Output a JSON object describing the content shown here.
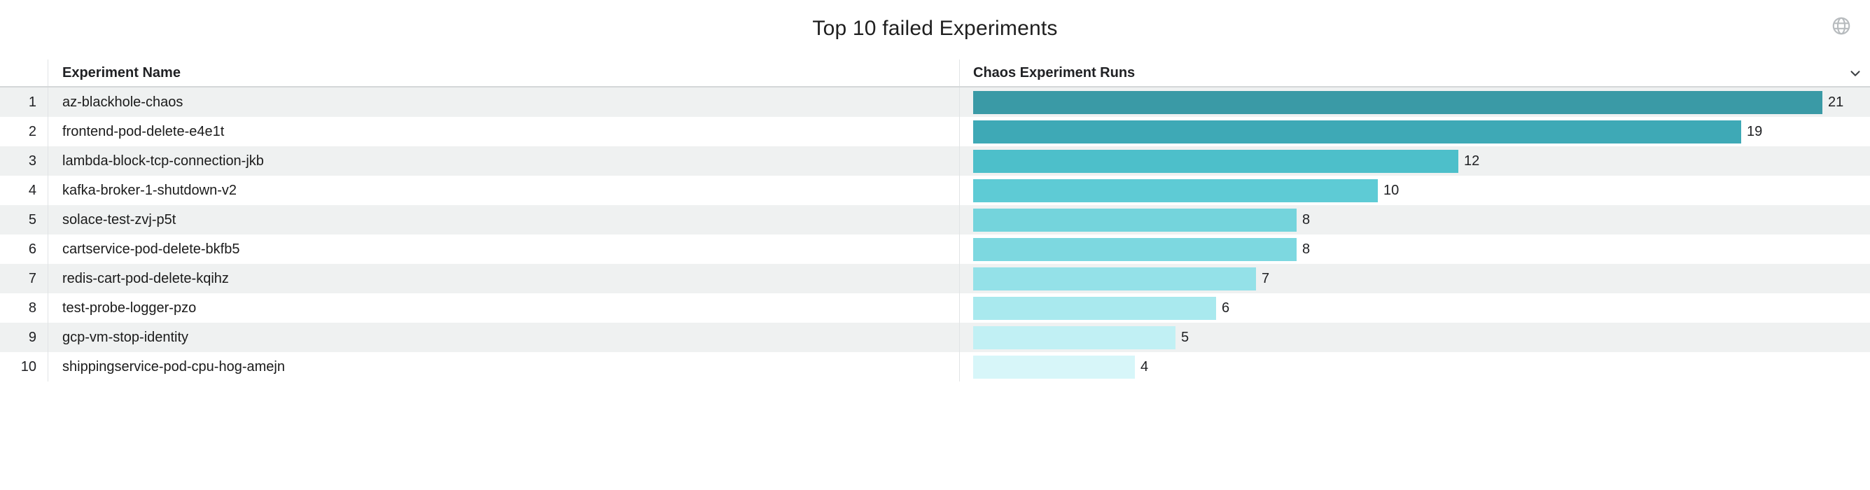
{
  "title": "Top 10 failed Experiments",
  "table": {
    "columns": [
      "Experiment Name",
      "Chaos Experiment Runs"
    ],
    "rows": [
      {
        "rank": "1",
        "name": "az-blackhole-chaos",
        "runs": "21"
      },
      {
        "rank": "2",
        "name": "frontend-pod-delete-e4e1t",
        "runs": "19"
      },
      {
        "rank": "3",
        "name": "lambda-block-tcp-connection-jkb",
        "runs": "12"
      },
      {
        "rank": "4",
        "name": "kafka-broker-1-shutdown-v2",
        "runs": "10"
      },
      {
        "rank": "5",
        "name": "solace-test-zvj-p5t",
        "runs": "8"
      },
      {
        "rank": "6",
        "name": "cartservice-pod-delete-bkfb5",
        "runs": "8"
      },
      {
        "rank": "7",
        "name": "redis-cart-pod-delete-kqihz",
        "runs": "7"
      },
      {
        "rank": "8",
        "name": "test-probe-logger-pzo",
        "runs": "6"
      },
      {
        "rank": "9",
        "name": "gcp-vm-stop-identity",
        "runs": "5"
      },
      {
        "rank": "10",
        "name": "shippingservice-pod-cpu-hog-amejn",
        "runs": "4"
      }
    ]
  },
  "chart_data": {
    "type": "bar",
    "orientation": "horizontal",
    "title": "Top 10 failed Experiments",
    "xlabel": "Chaos Experiment Runs",
    "ylabel": "Experiment Name",
    "categories": [
      "az-blackhole-chaos",
      "frontend-pod-delete-e4e1t",
      "lambda-block-tcp-connection-jkb",
      "kafka-broker-1-shutdown-v2",
      "solace-test-zvj-p5t",
      "cartservice-pod-delete-bkfb5",
      "redis-cart-pod-delete-kqihz",
      "test-probe-logger-pzo",
      "gcp-vm-stop-identity",
      "shippingservice-pod-cpu-hog-amejn"
    ],
    "values": [
      21,
      19,
      12,
      10,
      8,
      8,
      7,
      6,
      5,
      4
    ],
    "xlim": [
      0,
      21
    ],
    "value_labels_shown": true,
    "grid": false,
    "legend": "none",
    "bar_colors": [
      "#3a9aa6",
      "#3ea9b6",
      "#4dbfca",
      "#5ecbd5",
      "#74d4dc",
      "#7dd8e0",
      "#94e1e8",
      "#a9e9ee",
      "#c1f0f4",
      "#d7f6f9"
    ]
  },
  "colors": {
    "row_stripe": "#eff1f1",
    "header_border": "#d4d7d8",
    "divider": "#e1e4e5",
    "text": "#202124"
  }
}
